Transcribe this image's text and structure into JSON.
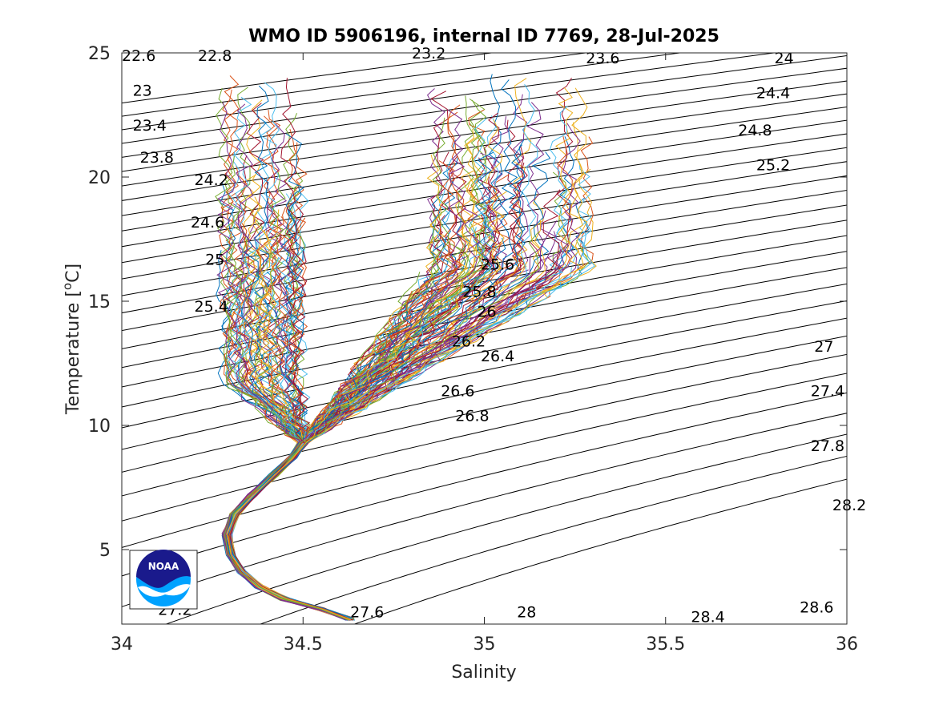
{
  "chart_data": {
    "type": "line",
    "title": "WMO ID 5906196, internal ID 7769, 28-Jul-2025",
    "xlabel": "Salinity",
    "ylabel": "Temperature [°C]",
    "ylabel_base": "Temperature [",
    "ylabel_sup": "o",
    "ylabel_tail": "C]",
    "xlim": [
      34,
      36
    ],
    "ylim": [
      2,
      25
    ],
    "xticks": [
      34,
      34.5,
      35,
      35.5,
      36
    ],
    "xtick_labels": [
      "34",
      "34.5",
      "35",
      "35.5",
      "36"
    ],
    "yticks": [
      5,
      10,
      15,
      20,
      25
    ],
    "ytick_labels": [
      "5",
      "10",
      "15",
      "20",
      "25"
    ],
    "grid": false,
    "legend": "none",
    "density_contours": {
      "levels": [
        22.6,
        22.8,
        23,
        23.2,
        23.4,
        23.6,
        23.8,
        24,
        24.2,
        24.4,
        24.6,
        24.8,
        25,
        25.2,
        25.4,
        25.6,
        25.8,
        26,
        26.2,
        26.4,
        26.6,
        26.8,
        27,
        27.2,
        27.4,
        27.6,
        27.8,
        28,
        28.2,
        28.4,
        28.6
      ],
      "labels": [
        {
          "text": "22.6",
          "s": 34.0,
          "t": 24.9
        },
        {
          "text": "22.8",
          "s": 34.21,
          "t": 24.9
        },
        {
          "text": "23.2",
          "s": 34.8,
          "t": 25.0
        },
        {
          "text": "23.6",
          "s": 35.28,
          "t": 24.8
        },
        {
          "text": "24",
          "s": 35.8,
          "t": 24.8
        },
        {
          "text": "23",
          "s": 34.03,
          "t": 23.5
        },
        {
          "text": "24.4",
          "s": 35.75,
          "t": 23.4
        },
        {
          "text": "23.4",
          "s": 34.03,
          "t": 22.1
        },
        {
          "text": "24.8",
          "s": 35.7,
          "t": 21.9
        },
        {
          "text": "23.8",
          "s": 34.05,
          "t": 20.8
        },
        {
          "text": "25.2",
          "s": 35.75,
          "t": 20.5
        },
        {
          "text": "24.2",
          "s": 34.2,
          "t": 19.9
        },
        {
          "text": "24.6",
          "s": 34.19,
          "t": 18.2
        },
        {
          "text": "25",
          "s": 34.23,
          "t": 16.7
        },
        {
          "text": "25.6",
          "s": 34.99,
          "t": 16.5
        },
        {
          "text": "25.8",
          "s": 34.94,
          "t": 15.4
        },
        {
          "text": "25.4",
          "s": 34.2,
          "t": 14.8
        },
        {
          "text": "26",
          "s": 34.98,
          "t": 14.6
        },
        {
          "text": "26.2",
          "s": 34.91,
          "t": 13.4
        },
        {
          "text": "26.4",
          "s": 34.99,
          "t": 12.8
        },
        {
          "text": "27",
          "s": 35.91,
          "t": 13.2
        },
        {
          "text": "26.6",
          "s": 34.88,
          "t": 11.4
        },
        {
          "text": "27.4",
          "s": 35.9,
          "t": 11.4
        },
        {
          "text": "26.8",
          "s": 34.92,
          "t": 10.4
        },
        {
          "text": "27.8",
          "s": 35.9,
          "t": 9.2
        },
        {
          "text": "28.2",
          "s": 35.96,
          "t": 6.8
        },
        {
          "text": "27.2",
          "s": 34.1,
          "t": 2.6
        },
        {
          "text": "27.6",
          "s": 34.63,
          "t": 2.5
        },
        {
          "text": "28",
          "s": 35.09,
          "t": 2.5
        },
        {
          "text": "28.4",
          "s": 35.57,
          "t": 2.3
        },
        {
          "text": "28.6",
          "s": 35.87,
          "t": 2.7
        }
      ]
    },
    "series_note_seed": 7769,
    "profiles": {
      "count": 180,
      "deep_path": [
        [
          34.63,
          2.2
        ],
        [
          34.55,
          2.6
        ],
        [
          34.45,
          3.0
        ],
        [
          34.38,
          3.5
        ],
        [
          34.33,
          4.1
        ],
        [
          34.3,
          4.8
        ],
        [
          34.29,
          5.6
        ],
        [
          34.31,
          6.4
        ],
        [
          34.36,
          7.2
        ],
        [
          34.42,
          8.0
        ],
        [
          34.47,
          8.7
        ],
        [
          34.5,
          9.3
        ]
      ],
      "palette": [
        "#0072bd",
        "#d95319",
        "#edb120",
        "#7e2f8e",
        "#77ac30",
        "#4dbeee",
        "#a2142f"
      ]
    }
  },
  "logo": {
    "text": "NOAA",
    "ring_color": "#ffffff",
    "top_color": "#1a1a8c",
    "bottom_color": "#00a2ff"
  }
}
